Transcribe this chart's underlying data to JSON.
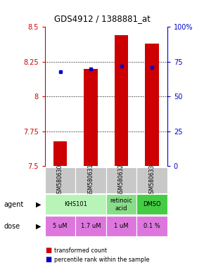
{
  "title": "GDS4912 / 1388881_at",
  "samples": [
    "GSM580630",
    "GSM580631",
    "GSM580632",
    "GSM580633"
  ],
  "bar_values": [
    7.68,
    8.2,
    8.44,
    8.38
  ],
  "bar_bottom": 7.5,
  "blue_values": [
    8.18,
    8.2,
    8.22,
    8.21
  ],
  "ylim": [
    7.5,
    8.5
  ],
  "right_ylim": [
    0,
    100
  ],
  "right_yticks": [
    0,
    25,
    50,
    75,
    100
  ],
  "right_yticklabels": [
    "0",
    "25",
    "50",
    "75",
    "100%"
  ],
  "left_yticks": [
    7.5,
    7.75,
    8.0,
    8.25,
    8.5
  ],
  "left_yticklabels": [
    "7.5",
    "7.75",
    "8",
    "8.25",
    "8.5"
  ],
  "bar_color": "#cc0000",
  "blue_color": "#0000cc",
  "dose_row": [
    "5 uM",
    "1.7 uM",
    "1 uM",
    "0.1 %"
  ],
  "dose_color": "#dd77dd",
  "sample_bg_color": "#c8c8c8",
  "legend_red_label": "transformed count",
  "legend_blue_label": "percentile rank within the sample",
  "left_label_color": "#cc0000",
  "right_label_color": "#0000cc",
  "agent_groups": [
    {
      "start": 0,
      "end": 2,
      "label": "KHS101",
      "color": "#b8f4b8"
    },
    {
      "start": 2,
      "end": 3,
      "label": "retinoic\nacid",
      "color": "#88dd88"
    },
    {
      "start": 3,
      "end": 4,
      "label": "DMSO",
      "color": "#44cc44"
    }
  ]
}
